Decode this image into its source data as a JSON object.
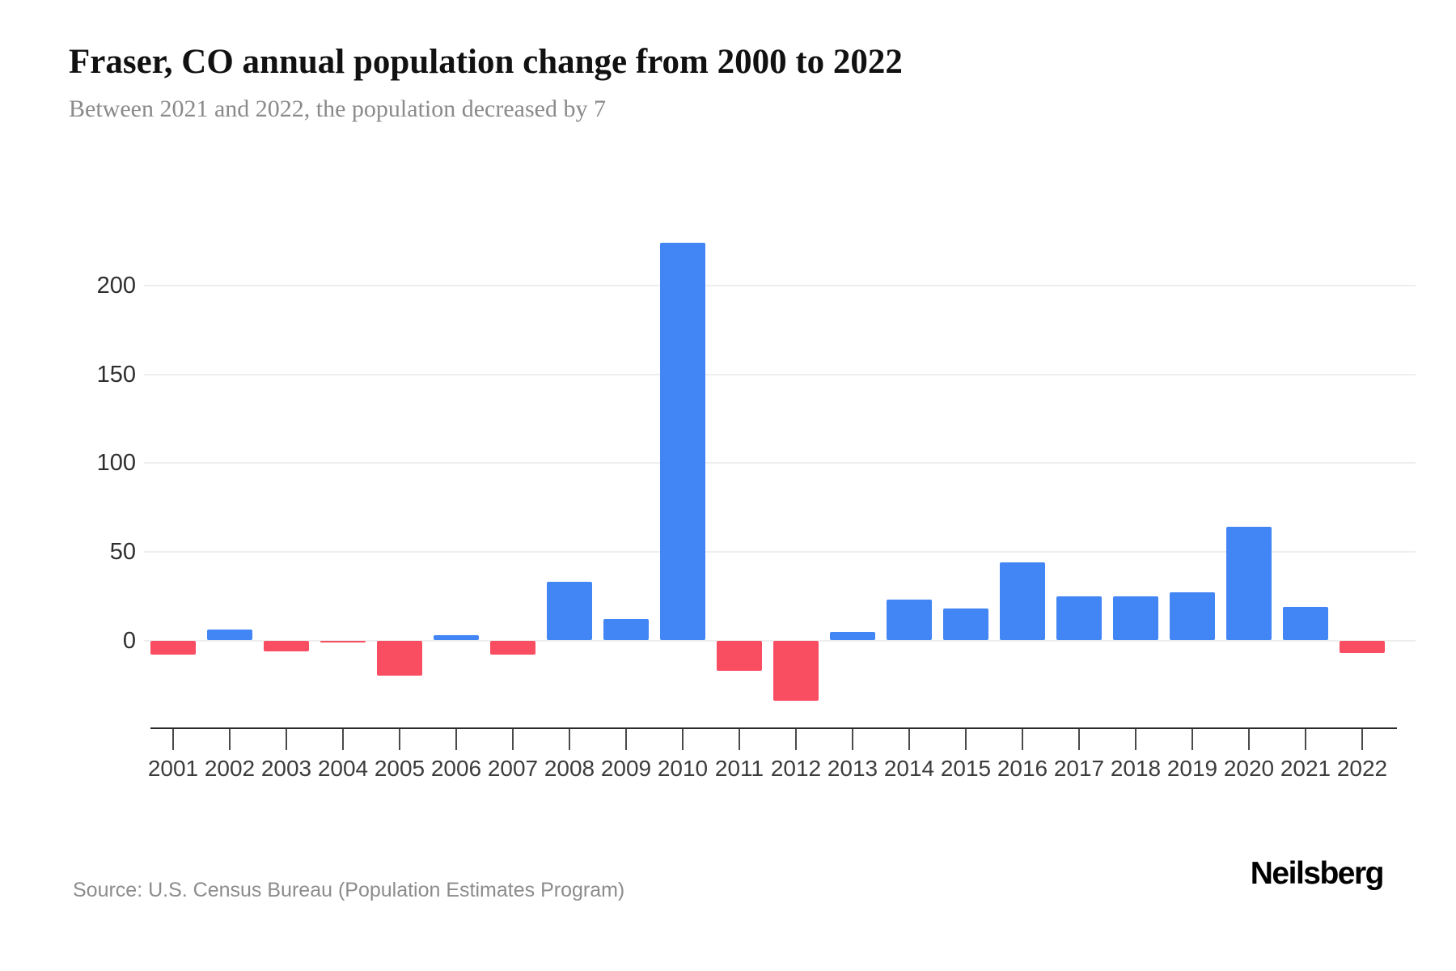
{
  "header": {
    "title": "Fraser, CO annual population change from 2000 to 2022",
    "subtitle": "Between 2021 and 2022, the population decreased by 7"
  },
  "chart_data": {
    "type": "bar",
    "title": "Fraser, CO annual population change from 2000 to 2022",
    "subtitle": "Between 2021 and 2022, the population decreased by 7",
    "categories": [
      "2001",
      "2002",
      "2003",
      "2004",
      "2005",
      "2006",
      "2007",
      "2008",
      "2009",
      "2010",
      "2011",
      "2012",
      "2013",
      "2014",
      "2015",
      "2016",
      "2017",
      "2018",
      "2019",
      "2020",
      "2021",
      "2022"
    ],
    "values": [
      -8,
      6,
      -6,
      -1,
      -20,
      3,
      -8,
      33,
      12,
      224,
      -17,
      -34,
      5,
      23,
      18,
      44,
      25,
      25,
      27,
      64,
      19,
      -7
    ],
    "xlabel": "",
    "ylabel": "",
    "yticks": [
      0,
      50,
      100,
      150,
      200
    ],
    "ylim": [
      -40,
      240
    ],
    "grid": true,
    "legend": false,
    "positive_color": "#4285f4",
    "negative_color": "#f94d62"
  },
  "footer": {
    "source": "Source: U.S. Census Bureau (Population Estimates Program)",
    "brand": "Neilsberg"
  }
}
